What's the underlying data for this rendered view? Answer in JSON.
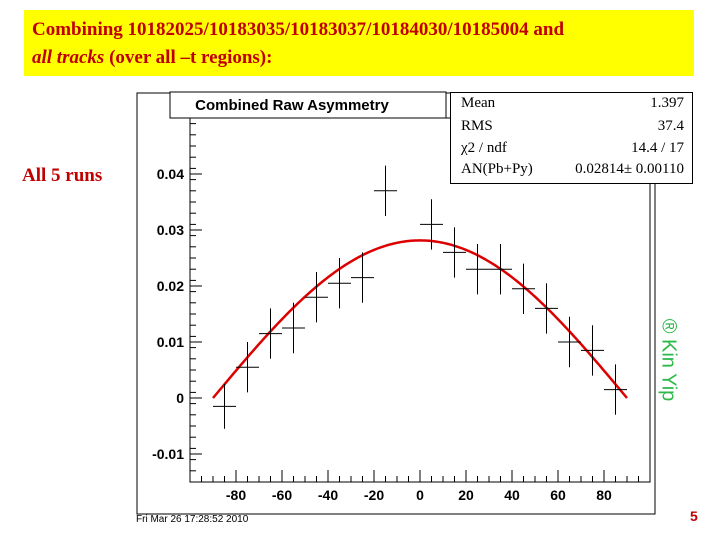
{
  "slide": {
    "heading_line1": "Combining 10182025/10183035/10183037/10184030/10185004 and",
    "heading_italic": "all tracks",
    "heading_rest": " (over all –t regions):",
    "side_label": "All 5 runs",
    "timestamp": "Fri Mar 26 17:28:52 2010",
    "slide_number": "5",
    "watermark": "® Kin Yip"
  },
  "stats_box": {
    "rows": [
      {
        "key": "Mean",
        "value": "1.397"
      },
      {
        "key": "RMS",
        "value": "37.4"
      },
      {
        "key": "χ2 / ndf",
        "value": "14.4 / 17"
      },
      {
        "key": "AN(Pb+Py)",
        "value": "0.02814± 0.00110"
      }
    ]
  },
  "chart_data": {
    "type": "scatter",
    "title": "Combined Raw Asymmetry",
    "xlabel": "",
    "ylabel": "",
    "xlim": [
      -100,
      100
    ],
    "ylim": [
      -0.015,
      0.05
    ],
    "x_ticks": [
      -80,
      -60,
      -40,
      -20,
      0,
      20,
      40,
      60,
      80
    ],
    "y_ticks": [
      -0.01,
      0,
      0.01,
      0.02,
      0.03,
      0.04
    ],
    "x_tick_labels": [
      "-80",
      "-60",
      "-40",
      "-20",
      "0",
      "20",
      "40",
      "60",
      "80"
    ],
    "y_tick_labels": [
      "-0.01",
      "0",
      "0.01",
      "0.02",
      "0.03",
      "0.04"
    ],
    "series": [
      {
        "name": "data",
        "color": "#000000",
        "points": [
          {
            "x": -85,
            "y": -0.0015,
            "xerr": 5,
            "yerr": 0.004
          },
          {
            "x": -75,
            "y": 0.0055,
            "xerr": 5,
            "yerr": 0.0045
          },
          {
            "x": -65,
            "y": 0.0115,
            "xerr": 5,
            "yerr": 0.0045
          },
          {
            "x": -55,
            "y": 0.0125,
            "xerr": 5,
            "yerr": 0.0045
          },
          {
            "x": -45,
            "y": 0.018,
            "xerr": 5,
            "yerr": 0.0045
          },
          {
            "x": -35,
            "y": 0.0205,
            "xerr": 5,
            "yerr": 0.0045
          },
          {
            "x": -25,
            "y": 0.0215,
            "xerr": 5,
            "yerr": 0.0045
          },
          {
            "x": -15,
            "y": 0.037,
            "xerr": 5,
            "yerr": 0.0045
          },
          {
            "x": 5,
            "y": 0.031,
            "xerr": 5,
            "yerr": 0.0045
          },
          {
            "x": 15,
            "y": 0.026,
            "xerr": 5,
            "yerr": 0.0045
          },
          {
            "x": 25,
            "y": 0.023,
            "xerr": 5,
            "yerr": 0.0045
          },
          {
            "x": 35,
            "y": 0.023,
            "xerr": 5,
            "yerr": 0.0045
          },
          {
            "x": 45,
            "y": 0.0195,
            "xerr": 5,
            "yerr": 0.0045
          },
          {
            "x": 55,
            "y": 0.016,
            "xerr": 5,
            "yerr": 0.0045
          },
          {
            "x": 65,
            "y": 0.01,
            "xerr": 5,
            "yerr": 0.0045
          },
          {
            "x": 75,
            "y": 0.0085,
            "xerr": 5,
            "yerr": 0.0045
          },
          {
            "x": 85,
            "y": 0.0015,
            "xerr": 5,
            "yerr": 0.0045
          }
        ]
      },
      {
        "name": "fit",
        "type": "line",
        "color": "#dd0000",
        "function": "AN(Pb+Py) * cos(x)",
        "amplitude": 0.02814,
        "x_range": [
          -90,
          90
        ]
      }
    ]
  }
}
